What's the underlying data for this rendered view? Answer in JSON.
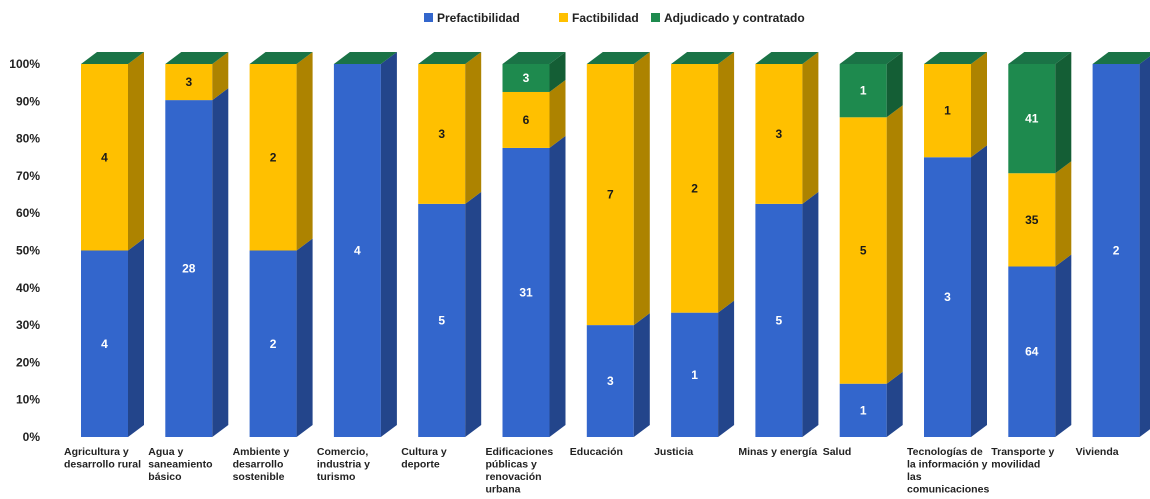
{
  "chart_data": {
    "type": "bar",
    "stacked": "percent",
    "three_d": true,
    "legend_position": "top",
    "grid": false,
    "ylim": [
      0,
      100
    ],
    "y_ticks": [
      "0%",
      "10%",
      "20%",
      "30%",
      "40%",
      "50%",
      "60%",
      "70%",
      "80%",
      "90%",
      "100%"
    ],
    "categories": [
      [
        "Agricultura y",
        "desarrollo rural"
      ],
      [
        "Agua y",
        "saneamiento",
        "básico"
      ],
      [
        "Ambiente y",
        "desarrollo",
        "sostenible"
      ],
      [
        "Comercio,",
        "industria y",
        "turismo"
      ],
      [
        "Cultura y",
        "deporte"
      ],
      [
        "Edificaciones",
        "públicas y",
        "renovación",
        "urbana"
      ],
      [
        "Educación"
      ],
      [
        "Justicia"
      ],
      [
        "Minas y energía"
      ],
      [
        "Salud"
      ],
      [
        "Tecnologías de",
        "la información y",
        "las",
        "comunicaciones"
      ],
      [
        "Transporte y",
        "movilidad"
      ],
      [
        "Vivienda"
      ]
    ],
    "series": [
      {
        "name": "Prefactibilidad",
        "color": "#3366cc",
        "label_color": "#ffffff",
        "values": [
          4,
          28,
          2,
          4,
          5,
          31,
          3,
          1,
          5,
          1,
          3,
          64,
          2
        ]
      },
      {
        "name": "Factibilidad",
        "color": "#ffc000",
        "label_color": "#1a1a1a",
        "values": [
          4,
          3,
          2,
          0,
          3,
          6,
          7,
          2,
          3,
          5,
          1,
          35,
          0
        ]
      },
      {
        "name": "Adjudicado y contratado",
        "color": "#1e8a4e",
        "label_color": "#ffffff",
        "values": [
          0,
          0,
          0,
          0,
          0,
          3,
          0,
          0,
          0,
          1,
          0,
          41,
          0
        ]
      }
    ]
  }
}
